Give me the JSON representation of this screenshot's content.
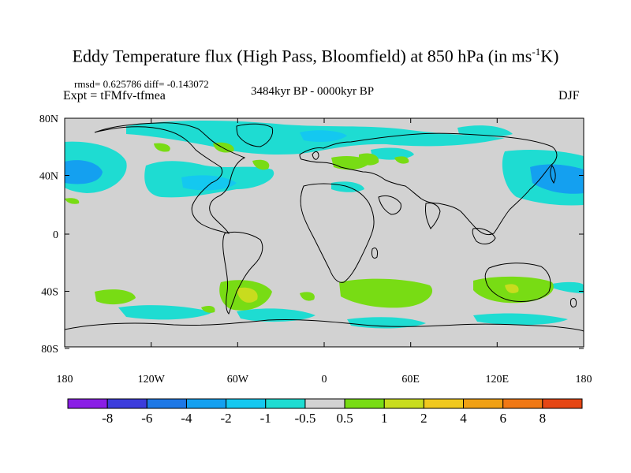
{
  "title": {
    "main": "Eddy Temperature flux (High Pass, Bloomfield) at 850 hPa (in ms",
    "sup": "-1",
    "tail": "K)"
  },
  "stats": "rmsd= 0.625786 diff= -0.143072",
  "experiment": "Expt = tFMfv-tfmea",
  "period": "3484kyr BP - 0000kyr BP",
  "season": "DJF",
  "lat_ticks": [
    "80N",
    "40N",
    "0",
    "40S",
    "80S"
  ],
  "lon_ticks": [
    "180",
    "120W",
    "60W",
    "0",
    "60E",
    "120E",
    "180"
  ],
  "colorbar": {
    "colors": [
      "#8a1ee6",
      "#3c3cdc",
      "#1e78e6",
      "#14a0f0",
      "#14c8f0",
      "#1edcd2",
      "#d2d2d2",
      "#78dc14",
      "#c8dc1e",
      "#f0c81e",
      "#f0a014",
      "#f07814",
      "#e64614"
    ],
    "labels": [
      "-8",
      "-6",
      "-4",
      "-2",
      "-1",
      "-0.5",
      "0.5",
      "1",
      "2",
      "4",
      "6",
      "8"
    ]
  },
  "map_colors": {
    "background": "#d2d2d2",
    "coastline": "#000000"
  }
}
